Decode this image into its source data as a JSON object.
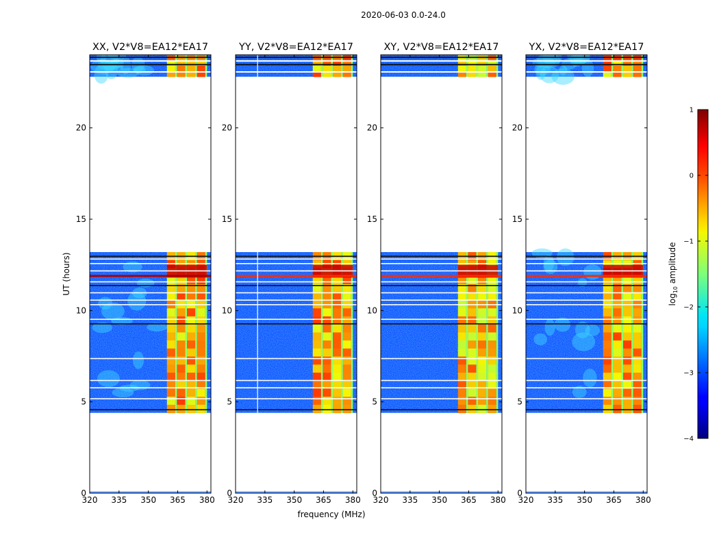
{
  "suptitle": "2020-06-03 0.0-24.0",
  "chart_data": [
    {
      "type": "heatmap",
      "title": "XX, V2*V8=EA12*EA17",
      "xlabel": "",
      "ylabel": "UT (hours)",
      "xlim": [
        320,
        382
      ],
      "ylim": [
        0,
        24
      ],
      "xticks": [
        320,
        335,
        350,
        365,
        380
      ],
      "yticks": [
        0,
        5,
        10,
        15,
        20
      ],
      "rfi_band_mhz": [
        359.5,
        380
      ],
      "data_blocks_hours": [
        [
          4.4,
          13.2
        ],
        [
          22.8,
          24
        ]
      ]
    },
    {
      "type": "heatmap",
      "title": "YY, V2*V8=EA12*EA17",
      "xlabel": "frequency (MHz)",
      "ylabel": "",
      "xlim": [
        320,
        382
      ],
      "ylim": [
        0,
        24
      ],
      "xticks": [
        320,
        335,
        350,
        365,
        380
      ],
      "yticks": [
        0,
        5,
        10,
        15,
        20
      ],
      "rfi_band_mhz": [
        359.5,
        380
      ],
      "data_blocks_hours": [
        [
          4.4,
          13.2
        ],
        [
          22.8,
          24
        ]
      ]
    },
    {
      "type": "heatmap",
      "title": "XY, V2*V8=EA12*EA17",
      "xlabel": "",
      "ylabel": "",
      "xlim": [
        320,
        382
      ],
      "ylim": [
        0,
        24
      ],
      "xticks": [
        320,
        335,
        350,
        365,
        380
      ],
      "yticks": [
        0,
        5,
        10,
        15,
        20
      ],
      "rfi_band_mhz": [
        359.5,
        380
      ],
      "data_blocks_hours": [
        [
          4.4,
          13.2
        ],
        [
          22.8,
          24
        ]
      ]
    },
    {
      "type": "heatmap",
      "title": "YX, V2*V8=EA12*EA17",
      "xlabel": "",
      "ylabel": "",
      "xlim": [
        320,
        382
      ],
      "ylim": [
        0,
        24
      ],
      "xticks": [
        320,
        335,
        350,
        365,
        380
      ],
      "yticks": [
        0,
        5,
        10,
        15,
        20
      ],
      "rfi_band_mhz": [
        359.5,
        380
      ],
      "data_blocks_hours": [
        [
          4.4,
          13.2
        ],
        [
          22.8,
          24
        ]
      ]
    }
  ],
  "colorbar": {
    "label_prefix": "log",
    "label_sub": "10",
    "label_suffix": " amplitude",
    "range": [
      -4,
      1
    ],
    "ticks": [
      "1",
      "0",
      "−1",
      "−2",
      "−3",
      "−4"
    ],
    "tick_values": [
      1,
      0,
      -1,
      -2,
      -3,
      -4
    ]
  }
}
